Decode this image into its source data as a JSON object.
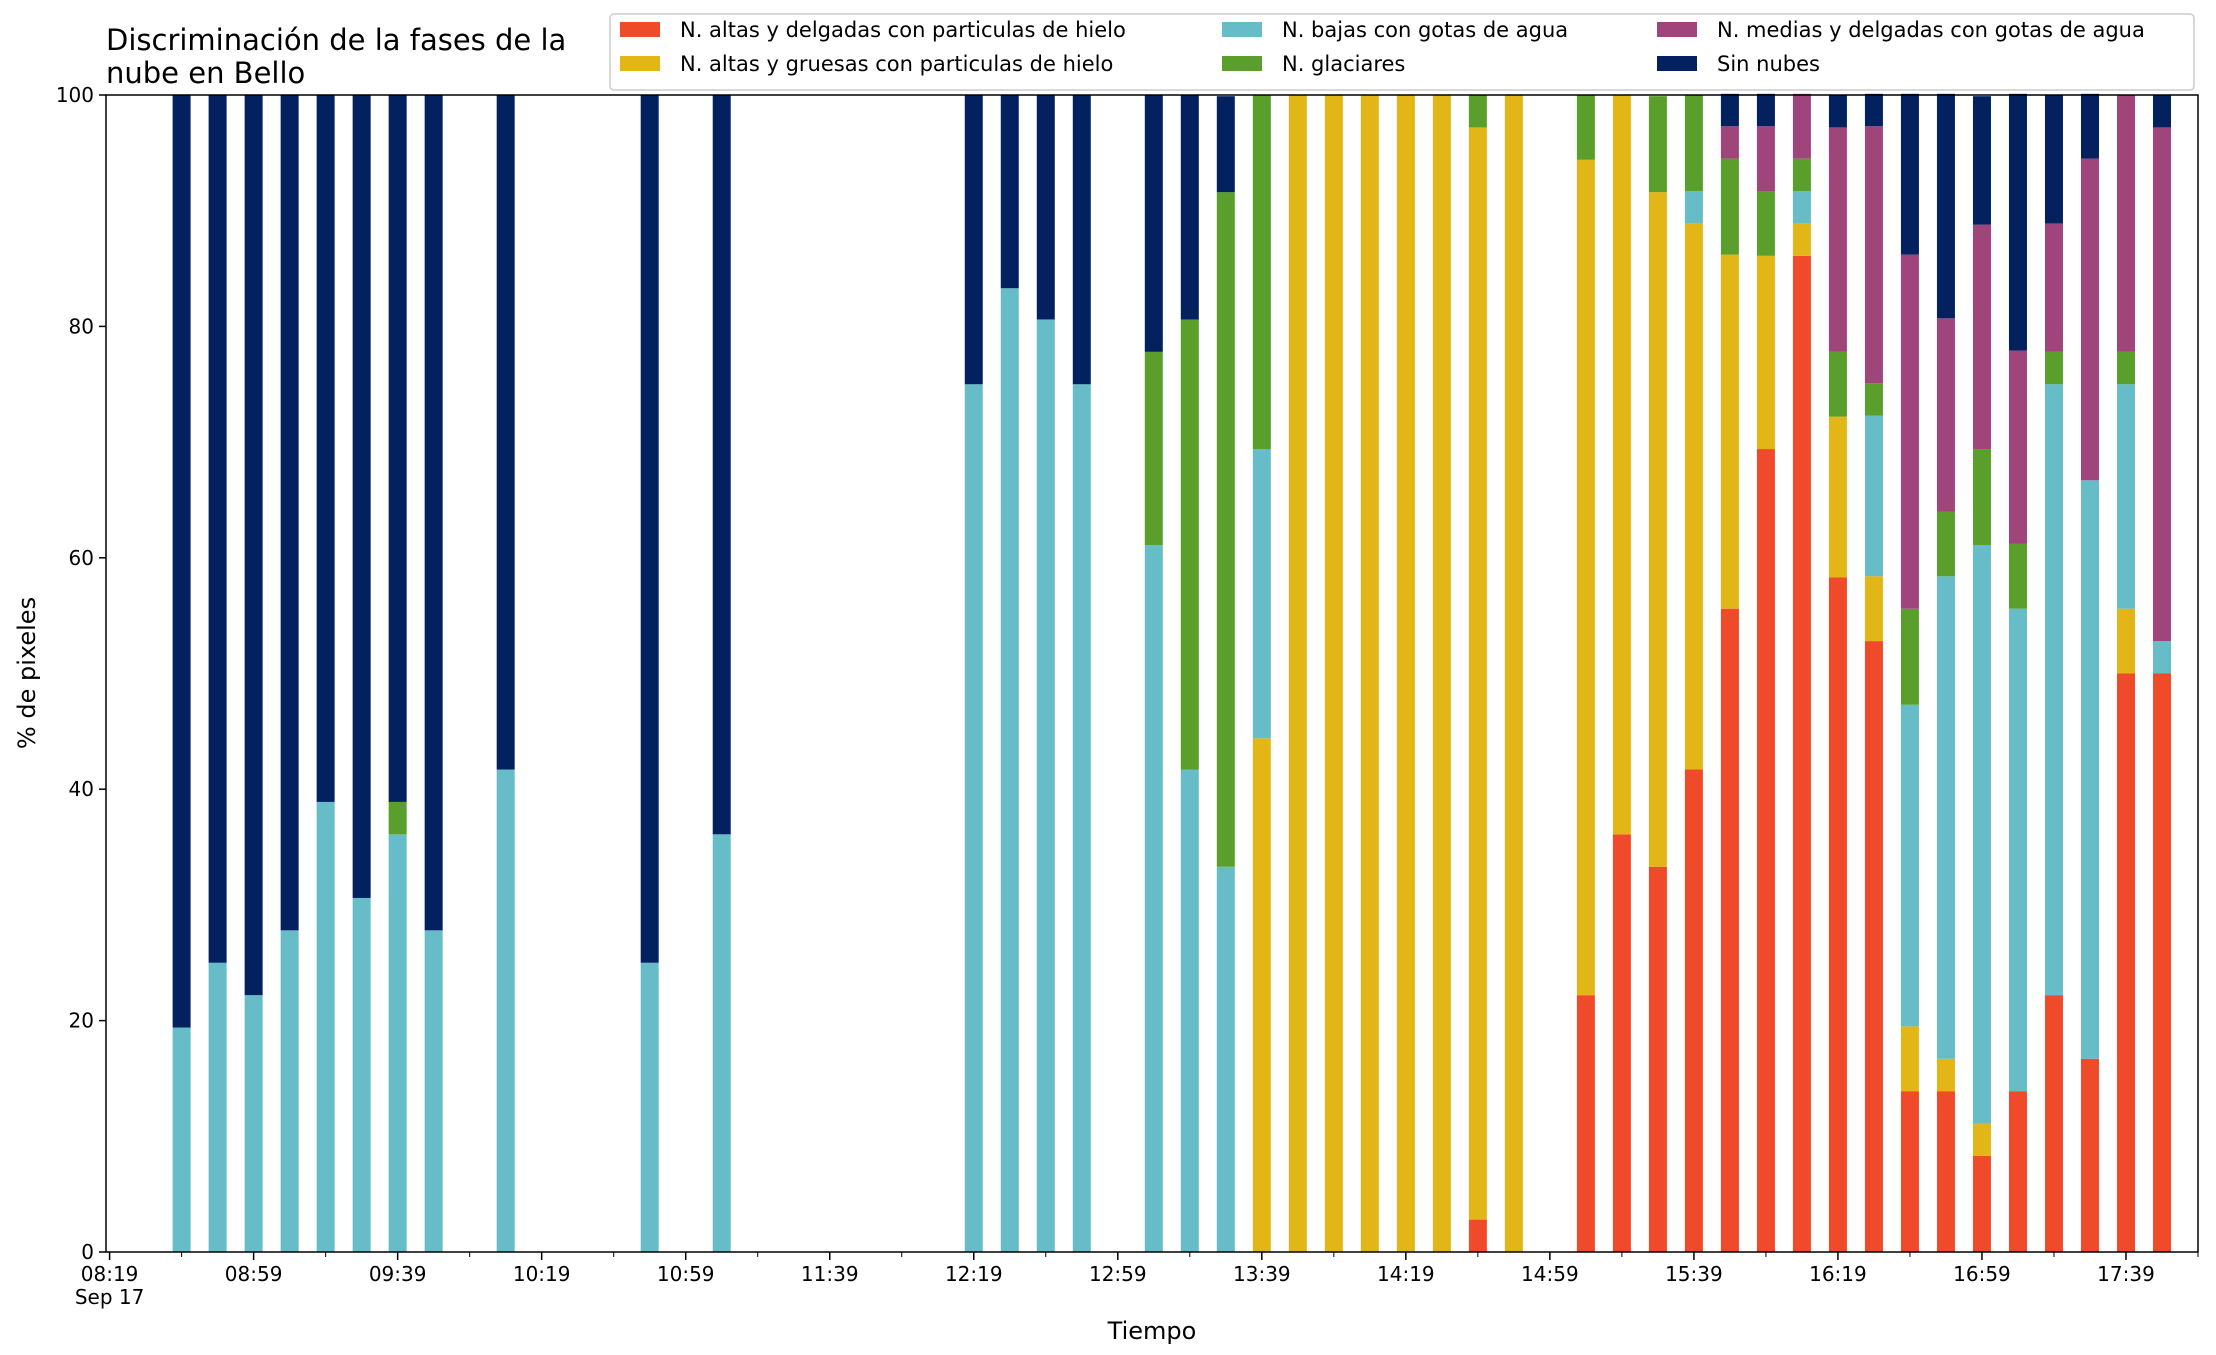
{
  "chart_data": {
    "type": "bar",
    "stacked": true,
    "title": "Discriminación de la fases de la\nnube en Bello",
    "xlabel": "Tiempo",
    "ylabel": "% de pixeles",
    "ylim": [
      0,
      100
    ],
    "xlim": [
      "08:19",
      "17:59"
    ],
    "date_label": "Sep 17",
    "grid": false,
    "legend_position": "top-right",
    "y_ticks": [
      0,
      20,
      40,
      60,
      80,
      100
    ],
    "x_tick_labels": [
      "08:19",
      "08:59",
      "09:39",
      "10:19",
      "10:59",
      "11:39",
      "12:19",
      "12:59",
      "13:39",
      "14:19",
      "14:59",
      "15:39",
      "16:19",
      "16:59",
      "17:39"
    ],
    "x": [
      "08:39",
      "08:49",
      "08:59",
      "09:09",
      "09:19",
      "09:29",
      "09:39",
      "09:49",
      "10:09",
      "10:49",
      "11:09",
      "12:19",
      "12:29",
      "12:39",
      "12:49",
      "13:09",
      "13:19",
      "13:29",
      "13:39",
      "13:49",
      "13:59",
      "14:09",
      "14:19",
      "14:29",
      "14:39",
      "14:49",
      "15:09",
      "15:19",
      "15:29",
      "15:39",
      "15:49",
      "15:59",
      "16:09",
      "16:19",
      "16:29",
      "16:39",
      "16:49",
      "16:59",
      "17:09",
      "17:19",
      "17:29",
      "17:39",
      "17:49"
    ],
    "series": [
      {
        "name": "N. altas y delgadas con particulas de hielo",
        "color": "#ef4b2a",
        "values": [
          0,
          0,
          0,
          0,
          0,
          0,
          0,
          0,
          0,
          0,
          0,
          0,
          0,
          0,
          0,
          0,
          0,
          0,
          0,
          0,
          0,
          0,
          0,
          0,
          2.8,
          0,
          22.2,
          36.1,
          33.3,
          41.7,
          55.6,
          69.4,
          86.1,
          58.3,
          52.8,
          13.9,
          13.9,
          8.3,
          13.9,
          22.2,
          16.7,
          50,
          50
        ]
      },
      {
        "name": "N. altas y gruesas con particulas de hielo",
        "color": "#e3b618",
        "values": [
          0,
          0,
          0,
          0,
          0,
          0,
          0,
          0,
          0,
          0,
          0,
          0,
          0,
          0,
          0,
          0,
          0,
          0,
          44.4,
          100,
          100,
          100,
          100,
          100,
          94.4,
          100,
          72.2,
          63.9,
          58.3,
          47.2,
          30.6,
          16.7,
          2.8,
          13.9,
          5.6,
          5.6,
          2.8,
          2.8,
          0,
          0,
          0,
          5.6,
          0
        ]
      },
      {
        "name": "N. bajas con gotas de agua",
        "color": "#66bdc8",
        "values": [
          19.4,
          25,
          22.2,
          27.8,
          38.9,
          30.6,
          36.1,
          27.8,
          41.7,
          25,
          36.1,
          75,
          83.3,
          80.6,
          75,
          61.1,
          41.7,
          33.3,
          25,
          0,
          0,
          0,
          0,
          0,
          0,
          0,
          0,
          0,
          0,
          2.8,
          0,
          0,
          2.8,
          0,
          13.9,
          27.8,
          41.7,
          50,
          41.7,
          52.8,
          50,
          19.4,
          2.8
        ]
      },
      {
        "name": "N. glaciares",
        "color": "#5a9f2b",
        "values": [
          0,
          0,
          0,
          0,
          0,
          0,
          2.8,
          0,
          0,
          0,
          0,
          0,
          0,
          0,
          0,
          16.7,
          38.9,
          58.3,
          30.6,
          0,
          0,
          0,
          0,
          0,
          2.8,
          0,
          5.6,
          0,
          8.3,
          8.3,
          8.3,
          5.6,
          2.8,
          5.6,
          2.8,
          8.3,
          5.6,
          8.3,
          5.6,
          2.8,
          0,
          2.8,
          0
        ]
      },
      {
        "name": "N. medias y delgadas con gotas de agua",
        "color": "#a0447c",
        "values": [
          0,
          0,
          0,
          0,
          0,
          0,
          0,
          0,
          0,
          0,
          0,
          0,
          0,
          0,
          0,
          0,
          0,
          0,
          0,
          0,
          0,
          0,
          0,
          0,
          0,
          0,
          0,
          0,
          0,
          0,
          2.8,
          5.6,
          5.6,
          19.4,
          22.2,
          30.6,
          16.7,
          19.4,
          16.7,
          11.1,
          27.8,
          22.2,
          44.4
        ]
      },
      {
        "name": "Sin nubes",
        "color": "#03215f",
        "values": [
          80.6,
          75,
          77.8,
          72.2,
          61.1,
          69.4,
          61.1,
          72.2,
          58.3,
          75,
          63.9,
          25,
          16.7,
          19.4,
          25,
          22.2,
          19.4,
          8.3,
          0,
          0,
          0,
          0,
          0,
          0,
          0,
          0,
          0,
          0,
          0,
          0,
          2.8,
          2.8,
          0,
          2.8,
          2.8,
          13.9,
          19.4,
          11.1,
          22.2,
          11.1,
          5.6,
          0,
          2.8
        ]
      }
    ]
  }
}
